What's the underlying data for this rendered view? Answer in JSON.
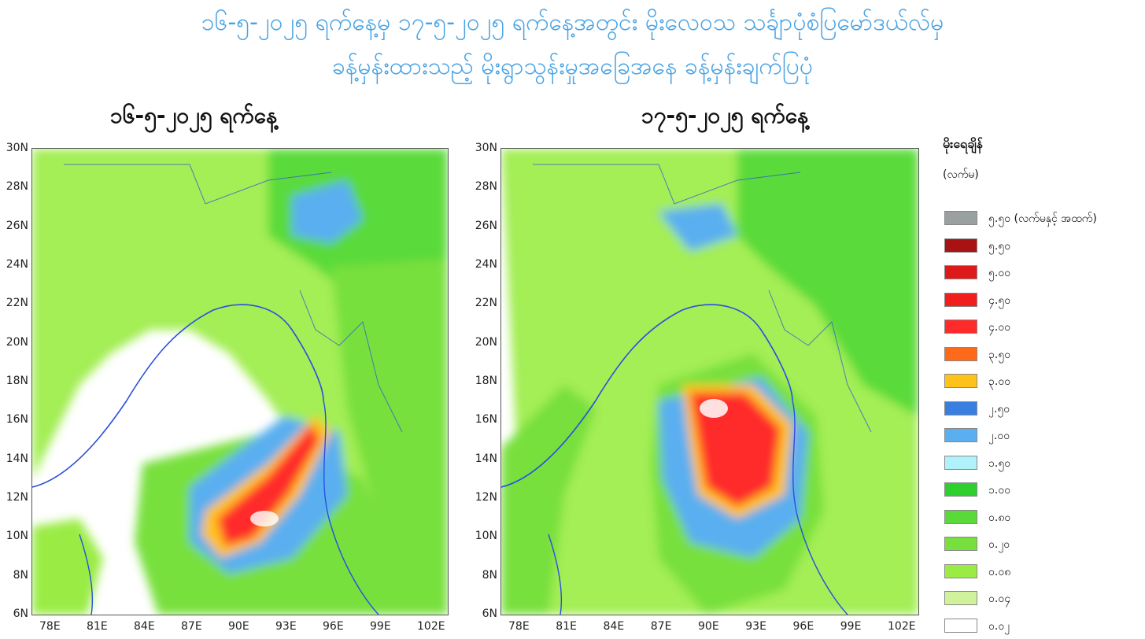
{
  "title_line1": "၁၆-၅-၂၀၂၅ ရက်နေ့မှ ၁၇-၅-၂၀၂၅ ရက်နေ့အတွင်း မိုးလေဝသ သင်္ချာပုံစံပြမော်ဒယ်လ်မှ",
  "title_line2": "ခန့်မှန်းထားသည့် မိုးရွာသွန်းမှုအခြေအနေ ခန့်မှန်းချက်ပြပုံ",
  "maps": [
    {
      "title": "၁၆-၅-၂၀၂၅ ရက်နေ့"
    },
    {
      "title": "၁၇-၅-၂၀၂၅ ရက်နေ့"
    }
  ],
  "lat_labels": [
    "30N",
    "28N",
    "26N",
    "24N",
    "22N",
    "20N",
    "18N",
    "16N",
    "14N",
    "12N",
    "10N",
    "8N",
    "6N"
  ],
  "lon_labels": [
    "78E",
    "81E",
    "84E",
    "87E",
    "90E",
    "93E",
    "96E",
    "99E",
    "102E"
  ],
  "legend": {
    "title": "မိုးရေချိန်",
    "unit": "(လက်မ)",
    "items": [
      {
        "label": "၅.၅၀ (လက်မနှင့် အထက်)",
        "color": "#9aa0a0"
      },
      {
        "label": "၅.၅၀",
        "color": "#a81212"
      },
      {
        "label": "၅.၀၀",
        "color": "#dc1a1a"
      },
      {
        "label": "၄.၅၀",
        "color": "#f21e1e"
      },
      {
        "label": "၄.၀၀",
        "color": "#ff2a2a"
      },
      {
        "label": "၃.၅၀",
        "color": "#ff6a1a"
      },
      {
        "label": "၃.၀၀",
        "color": "#ffc21a"
      },
      {
        "label": "၂.၅၀",
        "color": "#3a7fe0"
      },
      {
        "label": "၂.၀၀",
        "color": "#5aaff0"
      },
      {
        "label": "၁.၅၀",
        "color": "#b0f2fa"
      },
      {
        "label": "၁.၀၀",
        "color": "#2ecf2e"
      },
      {
        "label": "၀.၈၀",
        "color": "#5ada3a"
      },
      {
        "label": "၀.၂၀",
        "color": "#78e03c"
      },
      {
        "label": "၀.၀၈",
        "color": "#9aec44"
      },
      {
        "label": "၀.၀၄",
        "color": "#d0f29a"
      },
      {
        "label": "၀.၀၂",
        "color": "#ffffff"
      }
    ]
  }
}
